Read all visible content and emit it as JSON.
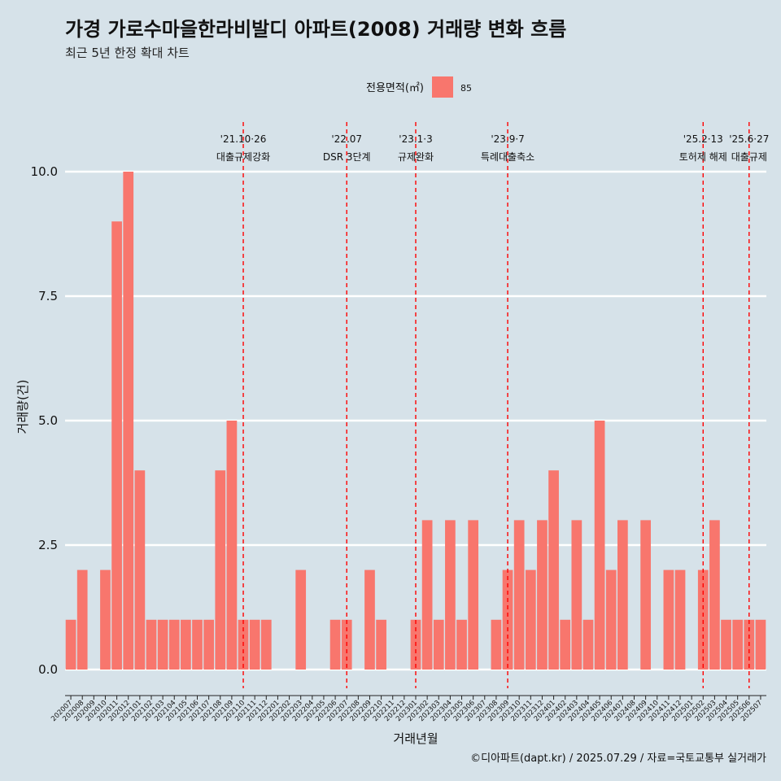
{
  "chart_data": {
    "type": "bar",
    "title": "가경 가로수마을한라비발디 아파트(2008) 거래량 변화 흐름",
    "subtitle": "최근 5년 한정 확대 차트",
    "xlabel": "거래년월",
    "ylabel": "거래량(건)",
    "legend": {
      "title": "전용면적(㎡)",
      "position": "top",
      "entries": [
        {
          "label": "85",
          "color": "#f8766d"
        }
      ]
    },
    "caption": "©디아파트(dapt.kr) / 2025.07.29 / 자료=국토교통부 실거래가",
    "ylim": [
      -0.45,
      11.4
    ],
    "yticks": [
      0,
      2.5,
      5,
      7.5,
      10
    ],
    "ytick_labels": [
      "0.0",
      "2.5",
      "5.0",
      "7.5",
      "10.0"
    ],
    "grid": true,
    "categories": [
      "202007",
      "202008",
      "202009",
      "202010",
      "202011",
      "202012",
      "202101",
      "202102",
      "202103",
      "202104",
      "202105",
      "202106",
      "202107",
      "202108",
      "202109",
      "202110",
      "202111",
      "202112",
      "202201",
      "202202",
      "202203",
      "202204",
      "202205",
      "202206",
      "202207",
      "202208",
      "202209",
      "202210",
      "202211",
      "202212",
      "202301",
      "202302",
      "202303",
      "202304",
      "202305",
      "202306",
      "202307",
      "202308",
      "202309",
      "202310",
      "202311",
      "202312",
      "202401",
      "202402",
      "202403",
      "202404",
      "202405",
      "202406",
      "202407",
      "202408",
      "202409",
      "202410",
      "202411",
      "202412",
      "202501",
      "202502",
      "202503",
      "202504",
      "202505",
      "202506",
      "202507"
    ],
    "series": [
      {
        "name": "85",
        "color": "#f8766d",
        "values": [
          1,
          2,
          0,
          2,
          9,
          10,
          4,
          1,
          1,
          1,
          1,
          1,
          1,
          4,
          5,
          1,
          1,
          1,
          0,
          0,
          2,
          0,
          0,
          1,
          1,
          0,
          2,
          1,
          0,
          0,
          1,
          3,
          1,
          3,
          1,
          3,
          0,
          1,
          2,
          3,
          2,
          3,
          4,
          1,
          3,
          1,
          5,
          2,
          3,
          0,
          3,
          0,
          2,
          2,
          0,
          2,
          3,
          1,
          1,
          1,
          1
        ]
      }
    ],
    "annotations": [
      {
        "x": "202110",
        "label_top": "'21.10·26",
        "label_bottom": "대출규제강화",
        "color": "#ff0000"
      },
      {
        "x": "202207",
        "label_top": "'22.07",
        "label_bottom": "DSR 3단계",
        "color": "#ff0000"
      },
      {
        "x": "202301",
        "label_top": "'23.1·3",
        "label_bottom": "규제완화",
        "color": "#ff0000"
      },
      {
        "x": "202309",
        "label_top": "'23.9·7",
        "label_bottom": "특례대출축소",
        "color": "#ff0000"
      },
      {
        "x": "202502",
        "label_top": "'25.2·13",
        "label_bottom": "토허제 해제",
        "color": "#ff0000"
      },
      {
        "x": "202506",
        "label_top": "'25.6·27",
        "label_bottom": "대출규제",
        "color": "#ff0000"
      }
    ]
  }
}
